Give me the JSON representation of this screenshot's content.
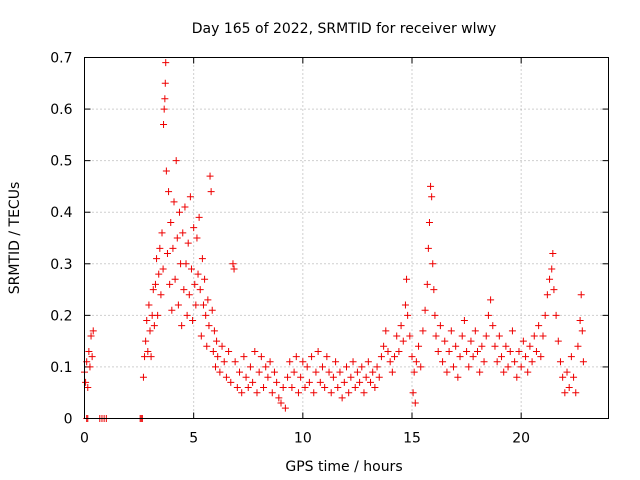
{
  "chart_data": {
    "type": "scatter",
    "title": "Day 165 of 2022, SRMTID for receiver wlwy",
    "xlabel": "GPS time / hours",
    "ylabel": "SRMTID / TECUs",
    "xlim": [
      0,
      24
    ],
    "ylim": [
      0,
      0.7
    ],
    "x_ticks": [
      0,
      5,
      10,
      15,
      20
    ],
    "x_tick_labels": [
      "0",
      "5",
      "10",
      "15",
      "20"
    ],
    "y_ticks": [
      0,
      0.1,
      0.2,
      0.3,
      0.4,
      0.5,
      0.6,
      0.7
    ],
    "y_tick_labels": [
      "0",
      "0.1",
      "0.2",
      "0.3",
      "0.4",
      "0.5",
      "0.6",
      "0.7"
    ],
    "grid": true,
    "marker": "+",
    "color": "#ee0000",
    "series": [
      {
        "name": "SRMTID",
        "points": [
          [
            0.0,
            0.09
          ],
          [
            0.05,
            0.07
          ],
          [
            0.1,
            0.11
          ],
          [
            0.15,
            0.06
          ],
          [
            0.2,
            0.13
          ],
          [
            0.25,
            0.1
          ],
          [
            0.3,
            0.16
          ],
          [
            0.35,
            0.12
          ],
          [
            0.4,
            0.17
          ],
          [
            0.1,
            0.0
          ],
          [
            0.15,
            0.0
          ],
          [
            0.7,
            0.0
          ],
          [
            0.8,
            0.0
          ],
          [
            0.9,
            0.0
          ],
          [
            1.0,
            0.0
          ],
          [
            2.55,
            0.0
          ],
          [
            2.6,
            0.0
          ],
          [
            2.65,
            0.0
          ],
          [
            2.7,
            0.08
          ],
          [
            2.75,
            0.12
          ],
          [
            2.8,
            0.15
          ],
          [
            2.85,
            0.19
          ],
          [
            2.9,
            0.13
          ],
          [
            2.95,
            0.22
          ],
          [
            3.0,
            0.17
          ],
          [
            3.05,
            0.12
          ],
          [
            3.1,
            0.2
          ],
          [
            3.15,
            0.25
          ],
          [
            3.2,
            0.18
          ],
          [
            3.25,
            0.26
          ],
          [
            3.3,
            0.31
          ],
          [
            3.35,
            0.2
          ],
          [
            3.4,
            0.28
          ],
          [
            3.45,
            0.33
          ],
          [
            3.5,
            0.24
          ],
          [
            3.55,
            0.36
          ],
          [
            3.6,
            0.29
          ],
          [
            3.62,
            0.57
          ],
          [
            3.65,
            0.6
          ],
          [
            3.68,
            0.62
          ],
          [
            3.7,
            0.65
          ],
          [
            3.72,
            0.69
          ],
          [
            3.75,
            0.48
          ],
          [
            3.8,
            0.32
          ],
          [
            3.85,
            0.44
          ],
          [
            3.9,
            0.26
          ],
          [
            3.95,
            0.38
          ],
          [
            4.0,
            0.21
          ],
          [
            4.05,
            0.33
          ],
          [
            4.1,
            0.42
          ],
          [
            4.15,
            0.27
          ],
          [
            4.2,
            0.5
          ],
          [
            4.25,
            0.35
          ],
          [
            4.3,
            0.22
          ],
          [
            4.35,
            0.4
          ],
          [
            4.4,
            0.3
          ],
          [
            4.45,
            0.18
          ],
          [
            4.5,
            0.36
          ],
          [
            4.55,
            0.25
          ],
          [
            4.6,
            0.41
          ],
          [
            4.65,
            0.3
          ],
          [
            4.7,
            0.2
          ],
          [
            4.75,
            0.34
          ],
          [
            4.8,
            0.24
          ],
          [
            4.85,
            0.43
          ],
          [
            4.9,
            0.29
          ],
          [
            4.95,
            0.19
          ],
          [
            5.0,
            0.37
          ],
          [
            5.05,
            0.26
          ],
          [
            5.1,
            0.22
          ],
          [
            5.15,
            0.35
          ],
          [
            5.2,
            0.28
          ],
          [
            5.25,
            0.39
          ],
          [
            5.3,
            0.25
          ],
          [
            5.35,
            0.16
          ],
          [
            5.4,
            0.31
          ],
          [
            5.45,
            0.22
          ],
          [
            5.5,
            0.27
          ],
          [
            5.55,
            0.2
          ],
          [
            5.6,
            0.14
          ],
          [
            5.65,
            0.23
          ],
          [
            5.7,
            0.18
          ],
          [
            5.75,
            0.47
          ],
          [
            5.8,
            0.44
          ],
          [
            5.85,
            0.21
          ],
          [
            5.9,
            0.13
          ],
          [
            5.95,
            0.17
          ],
          [
            6.0,
            0.1
          ],
          [
            6.05,
            0.15
          ],
          [
            6.1,
            0.12
          ],
          [
            6.2,
            0.09
          ],
          [
            6.3,
            0.14
          ],
          [
            6.4,
            0.11
          ],
          [
            6.5,
            0.08
          ],
          [
            6.6,
            0.13
          ],
          [
            6.7,
            0.07
          ],
          [
            6.8,
            0.3
          ],
          [
            6.85,
            0.29
          ],
          [
            6.9,
            0.11
          ],
          [
            7.0,
            0.06
          ],
          [
            7.1,
            0.09
          ],
          [
            7.2,
            0.05
          ],
          [
            7.3,
            0.12
          ],
          [
            7.4,
            0.08
          ],
          [
            7.5,
            0.06
          ],
          [
            7.6,
            0.1
          ],
          [
            7.7,
            0.07
          ],
          [
            7.8,
            0.13
          ],
          [
            7.9,
            0.05
          ],
          [
            8.0,
            0.09
          ],
          [
            8.1,
            0.12
          ],
          [
            8.2,
            0.06
          ],
          [
            8.3,
            0.1
          ],
          [
            8.4,
            0.08
          ],
          [
            8.5,
            0.11
          ],
          [
            8.6,
            0.05
          ],
          [
            8.7,
            0.09
          ],
          [
            8.8,
            0.07
          ],
          [
            8.9,
            0.04
          ],
          [
            9.0,
            0.03
          ],
          [
            9.1,
            0.06
          ],
          [
            9.2,
            0.02
          ],
          [
            9.3,
            0.08
          ],
          [
            9.4,
            0.11
          ],
          [
            9.5,
            0.06
          ],
          [
            9.6,
            0.09
          ],
          [
            9.7,
            0.12
          ],
          [
            9.8,
            0.05
          ],
          [
            9.9,
            0.08
          ],
          [
            10.0,
            0.11
          ],
          [
            10.1,
            0.06
          ],
          [
            10.2,
            0.1
          ],
          [
            10.3,
            0.07
          ],
          [
            10.4,
            0.12
          ],
          [
            10.5,
            0.05
          ],
          [
            10.6,
            0.09
          ],
          [
            10.7,
            0.13
          ],
          [
            10.8,
            0.07
          ],
          [
            10.9,
            0.1
          ],
          [
            11.0,
            0.06
          ],
          [
            11.1,
            0.12
          ],
          [
            11.2,
            0.09
          ],
          [
            11.3,
            0.05
          ],
          [
            11.4,
            0.08
          ],
          [
            11.5,
            0.11
          ],
          [
            11.6,
            0.06
          ],
          [
            11.7,
            0.09
          ],
          [
            11.8,
            0.04
          ],
          [
            11.9,
            0.07
          ],
          [
            12.0,
            0.1
          ],
          [
            12.1,
            0.05
          ],
          [
            12.2,
            0.08
          ],
          [
            12.3,
            0.11
          ],
          [
            12.4,
            0.06
          ],
          [
            12.5,
            0.09
          ],
          [
            12.6,
            0.07
          ],
          [
            12.7,
            0.1
          ],
          [
            12.8,
            0.05
          ],
          [
            12.9,
            0.08
          ],
          [
            13.0,
            0.11
          ],
          [
            13.1,
            0.07
          ],
          [
            13.2,
            0.09
          ],
          [
            13.3,
            0.06
          ],
          [
            13.4,
            0.1
          ],
          [
            13.5,
            0.08
          ],
          [
            13.6,
            0.12
          ],
          [
            13.7,
            0.14
          ],
          [
            13.8,
            0.17
          ],
          [
            13.9,
            0.13
          ],
          [
            14.0,
            0.11
          ],
          [
            14.1,
            0.09
          ],
          [
            14.2,
            0.12
          ],
          [
            14.3,
            0.16
          ],
          [
            14.4,
            0.13
          ],
          [
            14.5,
            0.18
          ],
          [
            14.6,
            0.15
          ],
          [
            14.7,
            0.22
          ],
          [
            14.75,
            0.27
          ],
          [
            14.8,
            0.2
          ],
          [
            14.9,
            0.16
          ],
          [
            15.0,
            0.12
          ],
          [
            15.05,
            0.05
          ],
          [
            15.1,
            0.09
          ],
          [
            15.15,
            0.03
          ],
          [
            15.2,
            0.11
          ],
          [
            15.3,
            0.14
          ],
          [
            15.4,
            0.1
          ],
          [
            15.5,
            0.17
          ],
          [
            15.6,
            0.21
          ],
          [
            15.7,
            0.26
          ],
          [
            15.75,
            0.33
          ],
          [
            15.8,
            0.38
          ],
          [
            15.85,
            0.45
          ],
          [
            15.9,
            0.43
          ],
          [
            15.95,
            0.3
          ],
          [
            16.0,
            0.25
          ],
          [
            16.05,
            0.2
          ],
          [
            16.1,
            0.16
          ],
          [
            16.2,
            0.13
          ],
          [
            16.3,
            0.18
          ],
          [
            16.4,
            0.11
          ],
          [
            16.5,
            0.15
          ],
          [
            16.6,
            0.09
          ],
          [
            16.7,
            0.13
          ],
          [
            16.8,
            0.17
          ],
          [
            16.9,
            0.1
          ],
          [
            17.0,
            0.14
          ],
          [
            17.1,
            0.08
          ],
          [
            17.2,
            0.12
          ],
          [
            17.3,
            0.16
          ],
          [
            17.4,
            0.19
          ],
          [
            17.5,
            0.13
          ],
          [
            17.6,
            0.1
          ],
          [
            17.7,
            0.15
          ],
          [
            17.8,
            0.12
          ],
          [
            17.9,
            0.17
          ],
          [
            18.0,
            0.13
          ],
          [
            18.1,
            0.09
          ],
          [
            18.2,
            0.14
          ],
          [
            18.3,
            0.11
          ],
          [
            18.4,
            0.16
          ],
          [
            18.5,
            0.2
          ],
          [
            18.6,
            0.23
          ],
          [
            18.7,
            0.18
          ],
          [
            18.8,
            0.14
          ],
          [
            18.9,
            0.11
          ],
          [
            19.0,
            0.16
          ],
          [
            19.1,
            0.12
          ],
          [
            19.2,
            0.09
          ],
          [
            19.3,
            0.14
          ],
          [
            19.4,
            0.1
          ],
          [
            19.5,
            0.13
          ],
          [
            19.6,
            0.17
          ],
          [
            19.7,
            0.11
          ],
          [
            19.8,
            0.08
          ],
          [
            19.9,
            0.13
          ],
          [
            20.0,
            0.1
          ],
          [
            20.1,
            0.15
          ],
          [
            20.2,
            0.12
          ],
          [
            20.3,
            0.09
          ],
          [
            20.4,
            0.14
          ],
          [
            20.5,
            0.11
          ],
          [
            20.6,
            0.16
          ],
          [
            20.7,
            0.13
          ],
          [
            20.8,
            0.18
          ],
          [
            20.9,
            0.12
          ],
          [
            21.0,
            0.16
          ],
          [
            21.1,
            0.2
          ],
          [
            21.2,
            0.24
          ],
          [
            21.3,
            0.27
          ],
          [
            21.4,
            0.29
          ],
          [
            21.45,
            0.32
          ],
          [
            21.5,
            0.25
          ],
          [
            21.6,
            0.2
          ],
          [
            21.7,
            0.15
          ],
          [
            21.8,
            0.11
          ],
          [
            21.9,
            0.08
          ],
          [
            22.0,
            0.05
          ],
          [
            22.1,
            0.09
          ],
          [
            22.2,
            0.06
          ],
          [
            22.3,
            0.12
          ],
          [
            22.4,
            0.08
          ],
          [
            22.5,
            0.05
          ],
          [
            22.6,
            0.14
          ],
          [
            22.7,
            0.19
          ],
          [
            22.75,
            0.24
          ],
          [
            22.8,
            0.17
          ],
          [
            22.85,
            0.11
          ]
        ]
      }
    ]
  }
}
